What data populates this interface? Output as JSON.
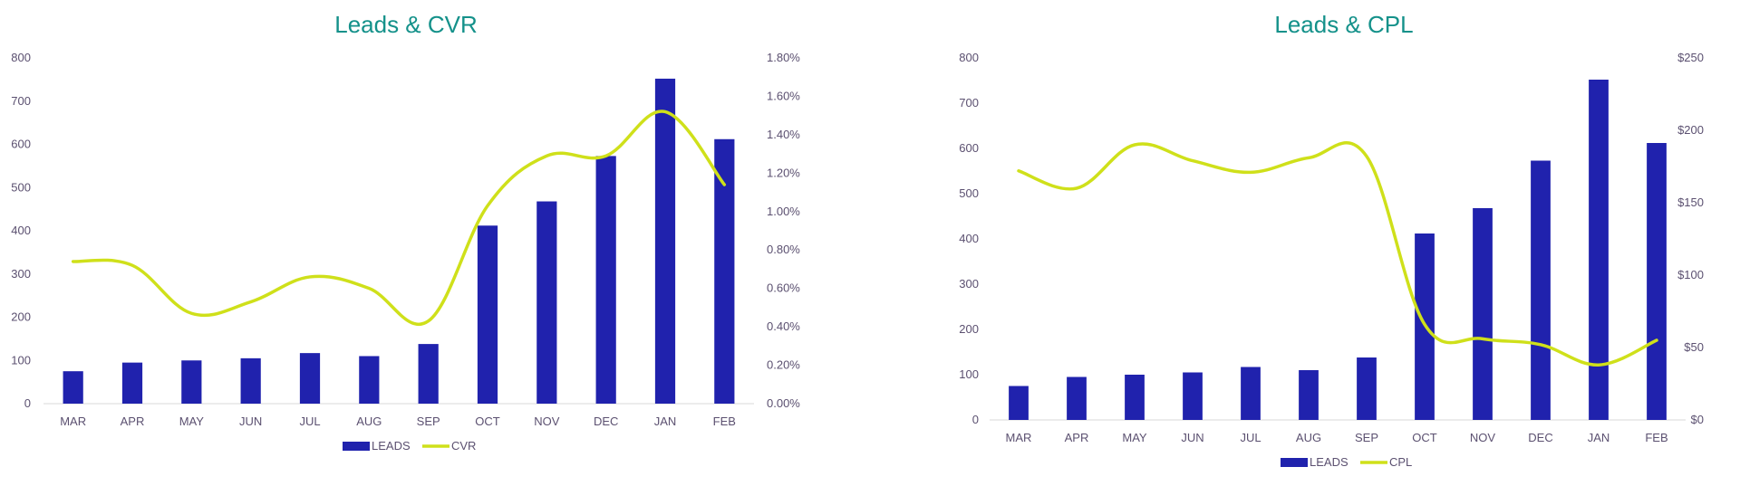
{
  "colors": {
    "title": "#14918a",
    "bar": "#2022ad",
    "line": "#cfe01a",
    "text": "#5b5070",
    "axis": "#d9d9d9"
  },
  "chart_data": [
    {
      "type": "bar",
      "title": "Leads & CVR",
      "categories": [
        "MAR",
        "APR",
        "MAY",
        "JUN",
        "JUL",
        "AUG",
        "SEP",
        "OCT",
        "NOV",
        "DEC",
        "JAN",
        "FEB"
      ],
      "series": [
        {
          "name": "LEADS",
          "type": "bar",
          "axis": "left",
          "values": [
            75,
            95,
            100,
            105,
            117,
            110,
            138,
            412,
            468,
            573,
            752,
            612
          ]
        },
        {
          "name": "CVR",
          "type": "line",
          "axis": "right",
          "smooth": true,
          "values": [
            0.74,
            0.72,
            0.47,
            0.53,
            0.66,
            0.6,
            0.43,
            1.03,
            1.29,
            1.29,
            1.52,
            1.14
          ]
        }
      ],
      "y_left": {
        "min": 0,
        "max": 800,
        "ticks": [
          "0",
          "100",
          "200",
          "300",
          "400",
          "500",
          "600",
          "700",
          "800"
        ]
      },
      "y_right": {
        "min": 0,
        "max": 1.8,
        "ticks": [
          "0.00%",
          "0.20%",
          "0.40%",
          "0.60%",
          "0.80%",
          "1.00%",
          "1.20%",
          "1.40%",
          "1.60%",
          "1.80%"
        ]
      },
      "legend_position": "bottom",
      "grid": false
    },
    {
      "type": "bar",
      "title": "Leads & CPL",
      "categories": [
        "MAR",
        "APR",
        "MAY",
        "JUN",
        "JUL",
        "AUG",
        "SEP",
        "OCT",
        "NOV",
        "DEC",
        "JAN",
        "FEB"
      ],
      "series": [
        {
          "name": "LEADS",
          "type": "bar",
          "axis": "left",
          "values": [
            75,
            95,
            100,
            105,
            117,
            110,
            138,
            412,
            468,
            573,
            752,
            612
          ]
        },
        {
          "name": "CPL",
          "type": "line",
          "axis": "right",
          "smooth": true,
          "values": [
            172,
            160,
            190,
            179,
            171,
            181,
            182,
            66,
            56,
            52,
            38,
            55
          ]
        }
      ],
      "y_left": {
        "min": 0,
        "max": 800,
        "ticks": [
          "0",
          "100",
          "200",
          "300",
          "400",
          "500",
          "600",
          "700",
          "800"
        ]
      },
      "y_right": {
        "min": 0,
        "max": 250,
        "ticks": [
          "$0",
          "$50",
          "$100",
          "$150",
          "$200",
          "$250"
        ]
      },
      "legend_position": "bottom",
      "grid": false
    }
  ]
}
